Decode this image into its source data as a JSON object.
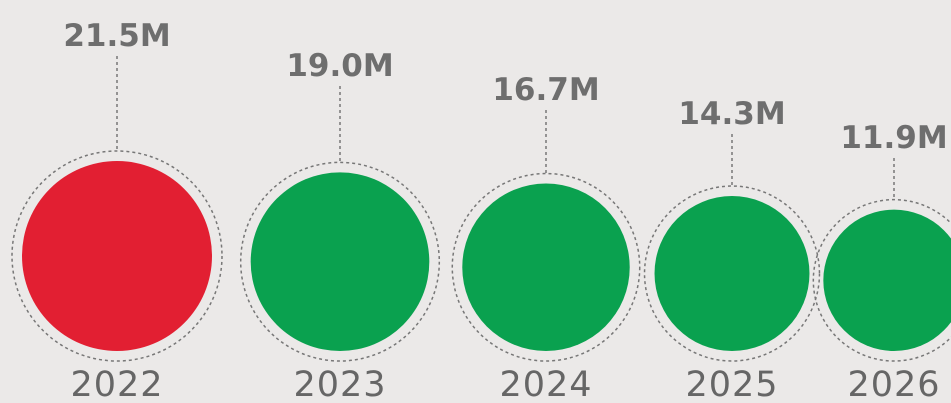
{
  "chart_data": {
    "type": "bubble",
    "categories": [
      "2022",
      "2023",
      "2024",
      "2025",
      "2026"
    ],
    "values": [
      21.5,
      19.0,
      16.7,
      14.3,
      11.9
    ],
    "value_labels": [
      "21.5M",
      "19.0M",
      "16.7M",
      "14.3M",
      "11.9M"
    ],
    "highlight_index": 0,
    "colors": {
      "highlight": "#e21f32",
      "default": "#0aa14f",
      "ring": "#777777",
      "text": "#6e6e6e",
      "background": "#ebe9e8"
    }
  }
}
